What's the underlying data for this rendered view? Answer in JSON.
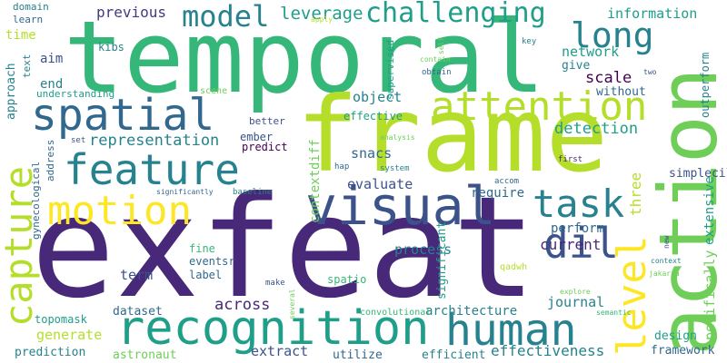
{
  "words": {
    "exfeat": "exfeat",
    "temporal": "temporal",
    "frame": "frame",
    "action": "action",
    "recognition": "recognition",
    "visual": "visual",
    "feature": "feature",
    "spatial": "spatial",
    "motion": "motion",
    "attention": "attention",
    "human": "human",
    "task": "task",
    "dil": "dil",
    "level": "level",
    "capture": "capture",
    "model": "model",
    "long": "long",
    "challenging": "challenging",
    "leverage": "leverage",
    "previous": "previous",
    "information": "information",
    "network": "network",
    "give": "give",
    "scale": "scale",
    "without": "without",
    "representation": "representation",
    "detection": "detection",
    "object": "object",
    "snacs": "snacs",
    "evaluate": "evaluate",
    "require": "require",
    "three": "three",
    "perform": "perform",
    "current": "current",
    "extensive": "extensive",
    "specifically": "specifically",
    "simplecil": "simplecil",
    "contextdiff": "contextdiff",
    "significant": "significant",
    "process": "process",
    "term": "term",
    "journal": "journal",
    "across": "across",
    "architecture": "architecture",
    "generate": "generate",
    "extract": "extract",
    "effectiveness": "effectiveness",
    "framework": "framework",
    "astronaut": "astronaut",
    "utilize": "utilize",
    "efficient": "efficient",
    "prediction": "prediction",
    "dataset": "dataset",
    "design": "design",
    "topomask": "topomask",
    "convolutional": "convolutional",
    "outperform": "outperform",
    "approach": "approach",
    "time": "time",
    "end": "end",
    "aim": "aim",
    "domain": "domain",
    "learn": "learn",
    "text": "text",
    "understanding": "understanding",
    "supervised": "supervised",
    "kibs": "kibs",
    "effective": "effective",
    "better": "better",
    "ember": "ember",
    "predict": "predict",
    "eventsr": "eventsr",
    "fine": "fine",
    "label": "label",
    "spatio": "spatio",
    "qadwh": "qadwh",
    "gynecological": "gynecological",
    "address": "address",
    "scene": "scene",
    "set": "set",
    "first": "first",
    "accom": "accom",
    "key": "key",
    "two": "two",
    "new": "new",
    "jakarta": "jakarta",
    "explore": "explore",
    "semantic": "semantic",
    "context": "context",
    "several": "several",
    "make": "make",
    "hap": "hap",
    "system": "system",
    "analysis": "analysis",
    "baseline": "baseline",
    "significantly": "significantly",
    "obtain": "obtain",
    "contain": "contain",
    "apply": "apply",
    "self": "self"
  },
  "colors": {
    "dark_purple": "#440154",
    "indigo": "#482878",
    "violet": "#443983",
    "slate_blue": "#3b528b",
    "blue": "#31688e",
    "teal_blue": "#26828e",
    "teal": "#1f9e89",
    "green_teal": "#35b779",
    "green": "#6ece58",
    "lime": "#b5de2b",
    "yellow": "#fde725"
  }
}
